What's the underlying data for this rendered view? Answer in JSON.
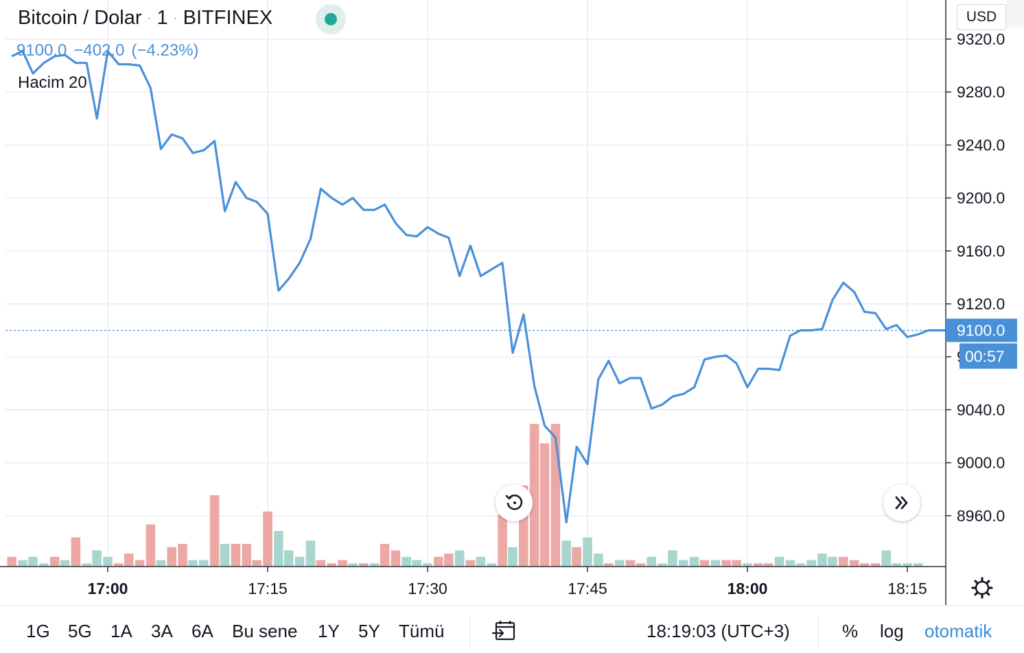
{
  "header": {
    "symbol": "Bitcoin / Dolar",
    "interval": "1",
    "exchange": "BITFINEX",
    "separator": "·"
  },
  "quote": {
    "last": "9100.0",
    "change": "−402.0",
    "change_pct": "(−4.23%)"
  },
  "volume_legend": {
    "label": "Hacim",
    "value": "20"
  },
  "currency_button": "USD",
  "price_label": "9100.0",
  "countdown_label": "00:57",
  "colors": {
    "line": "#4a90d9",
    "vol_up": "#a8d5cd",
    "vol_down": "#eba8a5",
    "grid": "#e9ecf1",
    "axis_text": "#131722",
    "price_tag": "#4a90d9"
  },
  "icons": {
    "reset": "rotate-ccw-icon",
    "scroll": "double-chevron-right-icon",
    "settings": "gear-icon",
    "date_range": "calendar-arrow-icon"
  },
  "bottom_bar": {
    "ranges": [
      "1G",
      "5G",
      "1A",
      "3A",
      "6A",
      "Bu sene",
      "1Y",
      "5Y",
      "Tümü"
    ],
    "time": "18:19:03 (UTC+3)",
    "percent_label": "%",
    "log_label": "log",
    "auto_label": "otomatik"
  },
  "chart_data": {
    "type": "line",
    "title": "",
    "xlabel": "",
    "ylabel": "",
    "x_unit": "time of day (HH:MM)",
    "x_range": [
      "16:51",
      "18:19"
    ],
    "x_ticks": [
      "17:00",
      "17:15",
      "17:30",
      "17:45",
      "18:00",
      "18:15"
    ],
    "bold_x_ticks": [
      "17:00",
      "18:00"
    ],
    "ylim": [
      8925,
      9335
    ],
    "y_ticks": [
      9320,
      9280,
      9240,
      9200,
      9160,
      9120,
      9080,
      9040,
      9000,
      8960
    ],
    "last_price": 9100,
    "grid": true,
    "series": [
      {
        "values": [
          [
            16.85,
            9307
          ],
          [
            16.867,
            9311
          ],
          [
            16.883,
            9294
          ],
          [
            16.9,
            9302
          ],
          [
            16.917,
            9307
          ],
          [
            16.933,
            9308
          ],
          [
            16.95,
            9302
          ],
          [
            16.967,
            9302
          ],
          [
            16.983,
            9260
          ],
          [
            17.0,
            9311
          ],
          [
            17.017,
            9301
          ],
          [
            17.033,
            9301
          ],
          [
            17.05,
            9300
          ],
          [
            17.067,
            9283
          ],
          [
            17.083,
            9237
          ],
          [
            17.1,
            9248
          ],
          [
            17.117,
            9245
          ],
          [
            17.133,
            9234
          ],
          [
            17.15,
            9236
          ],
          [
            17.167,
            9243
          ],
          [
            17.183,
            9190
          ],
          [
            17.2,
            9212
          ],
          [
            17.217,
            9200
          ],
          [
            17.233,
            9197
          ],
          [
            17.25,
            9188
          ],
          [
            17.267,
            9130
          ],
          [
            17.283,
            9139
          ],
          [
            17.3,
            9151
          ],
          [
            17.317,
            9169
          ],
          [
            17.333,
            9207
          ],
          [
            17.35,
            9200
          ],
          [
            17.367,
            9195
          ],
          [
            17.383,
            9200
          ],
          [
            17.4,
            9191
          ],
          [
            17.417,
            9191
          ],
          [
            17.433,
            9195
          ],
          [
            17.45,
            9181
          ],
          [
            17.467,
            9172
          ],
          [
            17.483,
            9171
          ],
          [
            17.5,
            9178
          ],
          [
            17.517,
            9173
          ],
          [
            17.533,
            9170
          ],
          [
            17.55,
            9141
          ],
          [
            17.567,
            9164
          ],
          [
            17.583,
            9141
          ],
          [
            17.6,
            9146
          ],
          [
            17.617,
            9151
          ],
          [
            17.633,
            9083
          ],
          [
            17.65,
            9112
          ],
          [
            17.667,
            9058
          ],
          [
            17.683,
            9028
          ],
          [
            17.7,
            9019
          ],
          [
            17.717,
            8955
          ],
          [
            17.733,
            9012
          ],
          [
            17.75,
            8999
          ],
          [
            17.767,
            9063
          ],
          [
            17.783,
            9077
          ],
          [
            17.8,
            9060
          ],
          [
            17.817,
            9064
          ],
          [
            17.833,
            9064
          ],
          [
            17.85,
            9041
          ],
          [
            17.867,
            9044
          ],
          [
            17.883,
            9050
          ],
          [
            17.9,
            9052
          ],
          [
            17.917,
            9057
          ],
          [
            17.933,
            9078
          ],
          [
            17.95,
            9080
          ],
          [
            17.967,
            9081
          ],
          [
            17.983,
            9075
          ],
          [
            18.0,
            9057
          ],
          [
            18.017,
            9071
          ],
          [
            18.033,
            9071
          ],
          [
            18.05,
            9070
          ],
          [
            18.067,
            9096
          ],
          [
            18.083,
            9100
          ],
          [
            18.1,
            9100
          ],
          [
            18.117,
            9101
          ],
          [
            18.133,
            9123
          ],
          [
            18.15,
            9136
          ],
          [
            18.167,
            9129
          ],
          [
            18.183,
            9114
          ],
          [
            18.2,
            9113
          ],
          [
            18.217,
            9101
          ],
          [
            18.233,
            9104
          ],
          [
            18.25,
            9095
          ],
          [
            18.267,
            9097
          ],
          [
            18.283,
            9100
          ],
          [
            18.3,
            9100
          ],
          [
            18.317,
            9100
          ]
        ]
      }
    ],
    "volume": {
      "axis_labels": false,
      "bars": [
        [
          16.85,
          3,
          "down"
        ],
        [
          16.867,
          2,
          "up"
        ],
        [
          16.883,
          3,
          "up"
        ],
        [
          16.9,
          1,
          "up"
        ],
        [
          16.917,
          3,
          "down"
        ],
        [
          16.933,
          2,
          "up"
        ],
        [
          16.95,
          9,
          "down"
        ],
        [
          16.967,
          1,
          "up"
        ],
        [
          16.983,
          5,
          "up"
        ],
        [
          17.0,
          3,
          "up"
        ],
        [
          17.017,
          1,
          "down"
        ],
        [
          17.033,
          4,
          "down"
        ],
        [
          17.05,
          2,
          "down"
        ],
        [
          17.067,
          13,
          "down"
        ],
        [
          17.083,
          2,
          "up"
        ],
        [
          17.1,
          6,
          "down"
        ],
        [
          17.117,
          7,
          "down"
        ],
        [
          17.133,
          2,
          "up"
        ],
        [
          17.15,
          2,
          "up"
        ],
        [
          17.167,
          22,
          "down"
        ],
        [
          17.183,
          7,
          "up"
        ],
        [
          17.2,
          7,
          "down"
        ],
        [
          17.217,
          7,
          "down"
        ],
        [
          17.233,
          2,
          "down"
        ],
        [
          17.25,
          17,
          "down"
        ],
        [
          17.267,
          11,
          "up"
        ],
        [
          17.283,
          5,
          "up"
        ],
        [
          17.3,
          3,
          "up"
        ],
        [
          17.317,
          8,
          "up"
        ],
        [
          17.333,
          2,
          "down"
        ],
        [
          17.35,
          1,
          "down"
        ],
        [
          17.367,
          2,
          "down"
        ],
        [
          17.383,
          1,
          "up"
        ],
        [
          17.4,
          1,
          "down"
        ],
        [
          17.417,
          1,
          "up"
        ],
        [
          17.433,
          7,
          "down"
        ],
        [
          17.45,
          5,
          "down"
        ],
        [
          17.467,
          3,
          "up"
        ],
        [
          17.483,
          2,
          "up"
        ],
        [
          17.5,
          1,
          "up"
        ],
        [
          17.517,
          3,
          "down"
        ],
        [
          17.533,
          4,
          "down"
        ],
        [
          17.55,
          5,
          "up"
        ],
        [
          17.567,
          2,
          "down"
        ],
        [
          17.583,
          3,
          "up"
        ],
        [
          17.6,
          1,
          "up"
        ],
        [
          17.617,
          16,
          "down"
        ],
        [
          17.633,
          6,
          "up"
        ],
        [
          17.65,
          25,
          "down"
        ],
        [
          17.667,
          44,
          "down"
        ],
        [
          17.683,
          38,
          "down"
        ],
        [
          17.7,
          44,
          "down"
        ],
        [
          17.717,
          8,
          "up"
        ],
        [
          17.733,
          6,
          "down"
        ],
        [
          17.75,
          9,
          "up"
        ],
        [
          17.767,
          4,
          "up"
        ],
        [
          17.783,
          1,
          "down"
        ],
        [
          17.8,
          2,
          "up"
        ],
        [
          17.817,
          2,
          "down"
        ],
        [
          17.833,
          1,
          "down"
        ],
        [
          17.85,
          3,
          "up"
        ],
        [
          17.867,
          1,
          "up"
        ],
        [
          17.883,
          5,
          "up"
        ],
        [
          17.9,
          2,
          "up"
        ],
        [
          17.917,
          3,
          "up"
        ],
        [
          17.933,
          2,
          "down"
        ],
        [
          17.95,
          2,
          "up"
        ],
        [
          17.967,
          2,
          "down"
        ],
        [
          17.983,
          2,
          "down"
        ],
        [
          18.0,
          1,
          "up"
        ],
        [
          18.017,
          1,
          "down"
        ],
        [
          18.033,
          1,
          "down"
        ],
        [
          18.05,
          3,
          "up"
        ],
        [
          18.067,
          2,
          "up"
        ],
        [
          18.083,
          1,
          "up"
        ],
        [
          18.1,
          2,
          "up"
        ],
        [
          18.117,
          4,
          "up"
        ],
        [
          18.133,
          3,
          "up"
        ],
        [
          18.15,
          3,
          "down"
        ],
        [
          18.167,
          2,
          "down"
        ],
        [
          18.183,
          1,
          "down"
        ],
        [
          18.2,
          1,
          "down"
        ],
        [
          18.217,
          5,
          "up"
        ],
        [
          18.233,
          1,
          "up"
        ],
        [
          18.25,
          1,
          "up"
        ],
        [
          18.267,
          1,
          "up"
        ]
      ]
    }
  }
}
